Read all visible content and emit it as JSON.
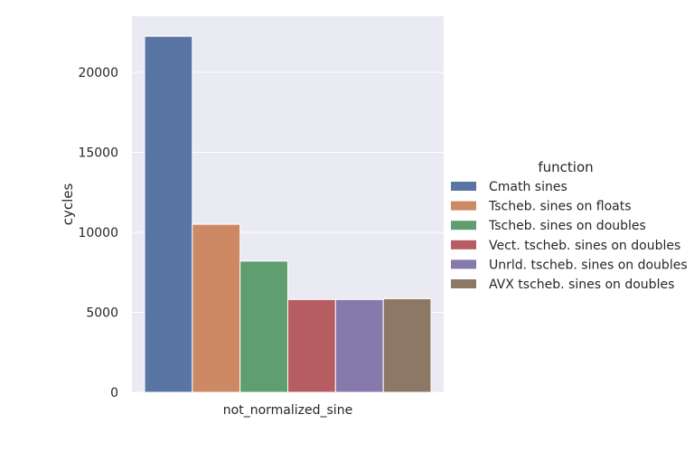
{
  "chart_data": {
    "type": "bar",
    "categories": [
      "not_normalized_sine"
    ],
    "xlabel": "",
    "ylabel": "cycles",
    "ylim": [
      0,
      23500
    ],
    "yticks": [
      0,
      5000,
      10000,
      15000,
      20000
    ],
    "ytick_labels": [
      "0",
      "5000",
      "10000",
      "15000",
      "20000"
    ],
    "grid": true,
    "legend": {
      "title": "function",
      "position": "right"
    },
    "series": [
      {
        "name": "Cmath sines",
        "values": [
          22250
        ],
        "color": "#5875a4"
      },
      {
        "name": "Tscheb. sines on floats",
        "values": [
          10500
        ],
        "color": "#cc8963"
      },
      {
        "name": "Tscheb. sines on doubles",
        "values": [
          8200
        ],
        "color": "#5f9e6e"
      },
      {
        "name": "Vect. tscheb. sines on doubles",
        "values": [
          5800
        ],
        "color": "#b55d60"
      },
      {
        "name": "Unrld. tscheb. sines on doubles",
        "values": [
          5800
        ],
        "color": "#857aab"
      },
      {
        "name": "AVX tscheb. sines on doubles",
        "values": [
          5850
        ],
        "color": "#8d7866"
      }
    ],
    "plot_background": "#eaeaf2"
  }
}
